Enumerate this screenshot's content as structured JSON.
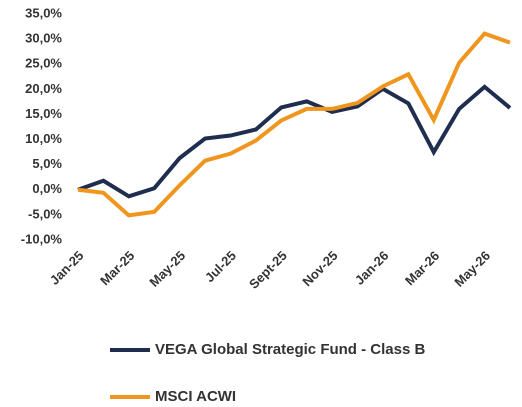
{
  "chart_data": {
    "type": "line",
    "categories": [
      "Jan-25",
      null,
      "Mar-25",
      null,
      "May-25",
      null,
      "Jul-25",
      null,
      "Sept-25",
      null,
      "Nov-25",
      null,
      "Jan-26",
      null,
      "Mar-26",
      null,
      "May-26",
      null
    ],
    "series": [
      {
        "name": "VEGA Global Strategic Fund - Class B",
        "color": "#1f2d4e",
        "values": [
          0,
          1.8,
          -1.3,
          0.3,
          6.3,
          10.2,
          10.8,
          12.0,
          16.4,
          17.6,
          15.5,
          16.6,
          20.1,
          17.2,
          7.5,
          16.1,
          20.5,
          16.3
        ]
      },
      {
        "name": "MSCI ACWI",
        "color": "#f0961e",
        "values": [
          0,
          -0.6,
          -5.1,
          -4.4,
          0.9,
          5.8,
          7.2,
          9.8,
          13.8,
          16.1,
          16.1,
          17.3,
          20.6,
          23.0,
          13.9,
          25.3,
          31.1,
          29.3
        ]
      }
    ],
    "ylim": [
      -10,
      35
    ],
    "yticks": [
      {
        "value": -10,
        "label": "-10,0%"
      },
      {
        "value": -5,
        "label": "-5,0%"
      },
      {
        "value": 0,
        "label": "0,0%"
      },
      {
        "value": 5,
        "label": "5,0%"
      },
      {
        "value": 10,
        "label": "10,0%"
      },
      {
        "value": 15,
        "label": "15,0%"
      },
      {
        "value": 20,
        "label": "20,0%"
      },
      {
        "value": 25,
        "label": "25,0%"
      },
      {
        "value": 30,
        "label": "30,0%"
      },
      {
        "value": 35,
        "label": "35,0%"
      }
    ],
    "grid": false
  }
}
